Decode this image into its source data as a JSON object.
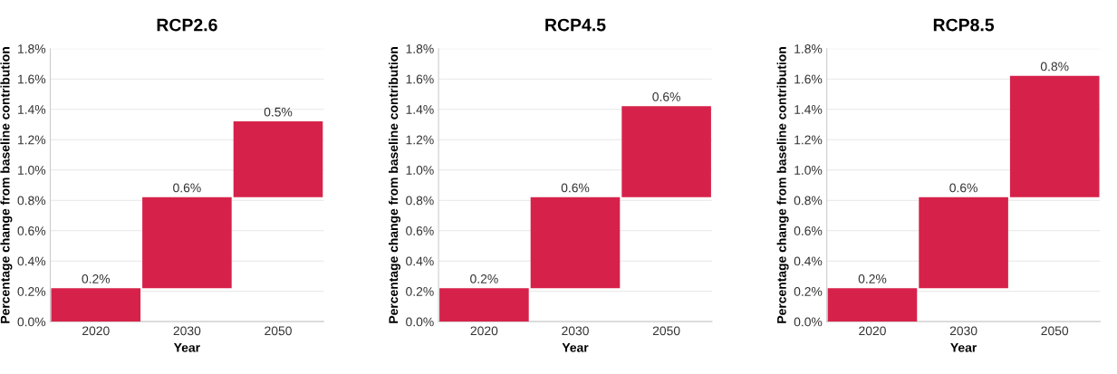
{
  "chart_data": [
    {
      "type": "bar",
      "title": "RCP2.6",
      "xlabel": "Year",
      "ylabel": "Percentage change from baseline contribution",
      "categories": [
        "2020",
        "2030",
        "2050"
      ],
      "values": [
        0.22,
        0.6,
        0.5
      ],
      "base": [
        0,
        0.22,
        0.82
      ],
      "color": "#d6224a",
      "value_labels": [
        "0.2%",
        "0.6%",
        "0.5%"
      ],
      "ylim": [
        0,
        1.8
      ],
      "yticks": [
        {
          "value": 0,
          "label": "0.0%"
        },
        {
          "value": 0.2,
          "label": "0.2%"
        },
        {
          "value": 0.4,
          "label": "0.4%"
        },
        {
          "value": 0.6,
          "label": "0.6%"
        },
        {
          "value": 0.8,
          "label": "0.8%"
        },
        {
          "value": 1.0,
          "label": "1.0%"
        },
        {
          "value": 1.2,
          "label": "1.2%"
        },
        {
          "value": 1.4,
          "label": "1.4%"
        },
        {
          "value": 1.6,
          "label": "1.6%"
        },
        {
          "value": 1.8,
          "label": "1.8%"
        }
      ],
      "grid": "y"
    },
    {
      "type": "bar",
      "title": "RCP4.5",
      "xlabel": "Year",
      "ylabel": "Percentage change from baseline contribution",
      "categories": [
        "2020",
        "2030",
        "2050"
      ],
      "values": [
        0.22,
        0.6,
        0.6
      ],
      "base": [
        0,
        0.22,
        0.82
      ],
      "color": "#d6224a",
      "value_labels": [
        "0.2%",
        "0.6%",
        "0.6%"
      ],
      "ylim": [
        0,
        1.8
      ],
      "yticks": [
        {
          "value": 0,
          "label": "0.0%"
        },
        {
          "value": 0.2,
          "label": "0.2%"
        },
        {
          "value": 0.4,
          "label": "0.4%"
        },
        {
          "value": 0.6,
          "label": "0.6%"
        },
        {
          "value": 0.8,
          "label": "0.8%"
        },
        {
          "value": 1.0,
          "label": "1.0%"
        },
        {
          "value": 1.2,
          "label": "1.2%"
        },
        {
          "value": 1.4,
          "label": "1.4%"
        },
        {
          "value": 1.6,
          "label": "1.6%"
        },
        {
          "value": 1.8,
          "label": "1.8%"
        }
      ],
      "grid": "y"
    },
    {
      "type": "bar",
      "title": "RCP8.5",
      "xlabel": "Year",
      "ylabel": "Percentage change from baseline contribution",
      "categories": [
        "2020",
        "2030",
        "2050"
      ],
      "values": [
        0.22,
        0.6,
        0.8
      ],
      "base": [
        0,
        0.22,
        0.82
      ],
      "color": "#d6224a",
      "value_labels": [
        "0.2%",
        "0.6%",
        "0.8%"
      ],
      "ylim": [
        0,
        1.8
      ],
      "yticks": [
        {
          "value": 0,
          "label": "0.0%"
        },
        {
          "value": 0.2,
          "label": "0.2%"
        },
        {
          "value": 0.4,
          "label": "0.4%"
        },
        {
          "value": 0.6,
          "label": "0.6%"
        },
        {
          "value": 0.8,
          "label": "0.8%"
        },
        {
          "value": 1.0,
          "label": "1.0%"
        },
        {
          "value": 1.2,
          "label": "1.2%"
        },
        {
          "value": 1.4,
          "label": "1.4%"
        },
        {
          "value": 1.6,
          "label": "1.6%"
        },
        {
          "value": 1.8,
          "label": "1.8%"
        }
      ],
      "grid": "y"
    }
  ]
}
